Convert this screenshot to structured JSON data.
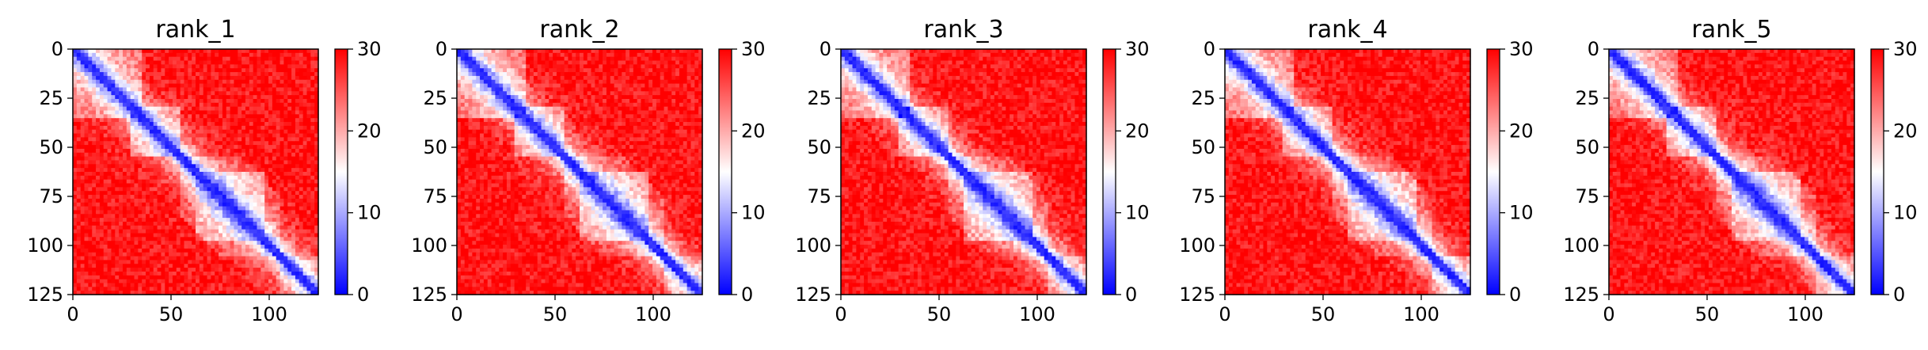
{
  "chart_data": [
    {
      "type": "heatmap",
      "title": "rank_1",
      "xlim": [
        0,
        125
      ],
      "ylim": [
        125,
        0
      ],
      "x_ticks": [
        0,
        50,
        100
      ],
      "y_ticks": [
        0,
        25,
        50,
        75,
        100,
        125
      ],
      "colorbar": {
        "range": [
          0,
          30
        ],
        "ticks": [
          0,
          10,
          20,
          30
        ],
        "colormap": "bwr",
        "colors": [
          "#0000ff",
          "#ffffff",
          "#ff0000"
        ]
      }
    },
    {
      "type": "heatmap",
      "title": "rank_2",
      "xlim": [
        0,
        125
      ],
      "ylim": [
        125,
        0
      ],
      "x_ticks": [
        0,
        50,
        100
      ],
      "y_ticks": [
        0,
        25,
        50,
        75,
        100,
        125
      ],
      "colorbar": {
        "range": [
          0,
          30
        ],
        "ticks": [
          0,
          10,
          20,
          30
        ],
        "colormap": "bwr",
        "colors": [
          "#0000ff",
          "#ffffff",
          "#ff0000"
        ]
      }
    },
    {
      "type": "heatmap",
      "title": "rank_3",
      "xlim": [
        0,
        125
      ],
      "ylim": [
        125,
        0
      ],
      "x_ticks": [
        0,
        50,
        100
      ],
      "y_ticks": [
        0,
        25,
        50,
        75,
        100,
        125
      ],
      "colorbar": {
        "range": [
          0,
          30
        ],
        "ticks": [
          0,
          10,
          20,
          30
        ],
        "colormap": "bwr",
        "colors": [
          "#0000ff",
          "#ffffff",
          "#ff0000"
        ]
      }
    },
    {
      "type": "heatmap",
      "title": "rank_4",
      "xlim": [
        0,
        125
      ],
      "ylim": [
        125,
        0
      ],
      "x_ticks": [
        0,
        50,
        100
      ],
      "y_ticks": [
        0,
        25,
        50,
        75,
        100,
        125
      ],
      "colorbar": {
        "range": [
          0,
          30
        ],
        "ticks": [
          0,
          10,
          20,
          30
        ],
        "colormap": "bwr",
        "colors": [
          "#0000ff",
          "#ffffff",
          "#ff0000"
        ]
      }
    },
    {
      "type": "heatmap",
      "title": "rank_5",
      "xlim": [
        0,
        125
      ],
      "ylim": [
        125,
        0
      ],
      "x_ticks": [
        0,
        50,
        100
      ],
      "y_ticks": [
        0,
        25,
        50,
        75,
        100,
        125
      ],
      "colorbar": {
        "range": [
          0,
          30
        ],
        "ticks": [
          0,
          10,
          20,
          30
        ],
        "colormap": "bwr",
        "colors": [
          "#0000ff",
          "#ffffff",
          "#ff0000"
        ]
      }
    }
  ]
}
